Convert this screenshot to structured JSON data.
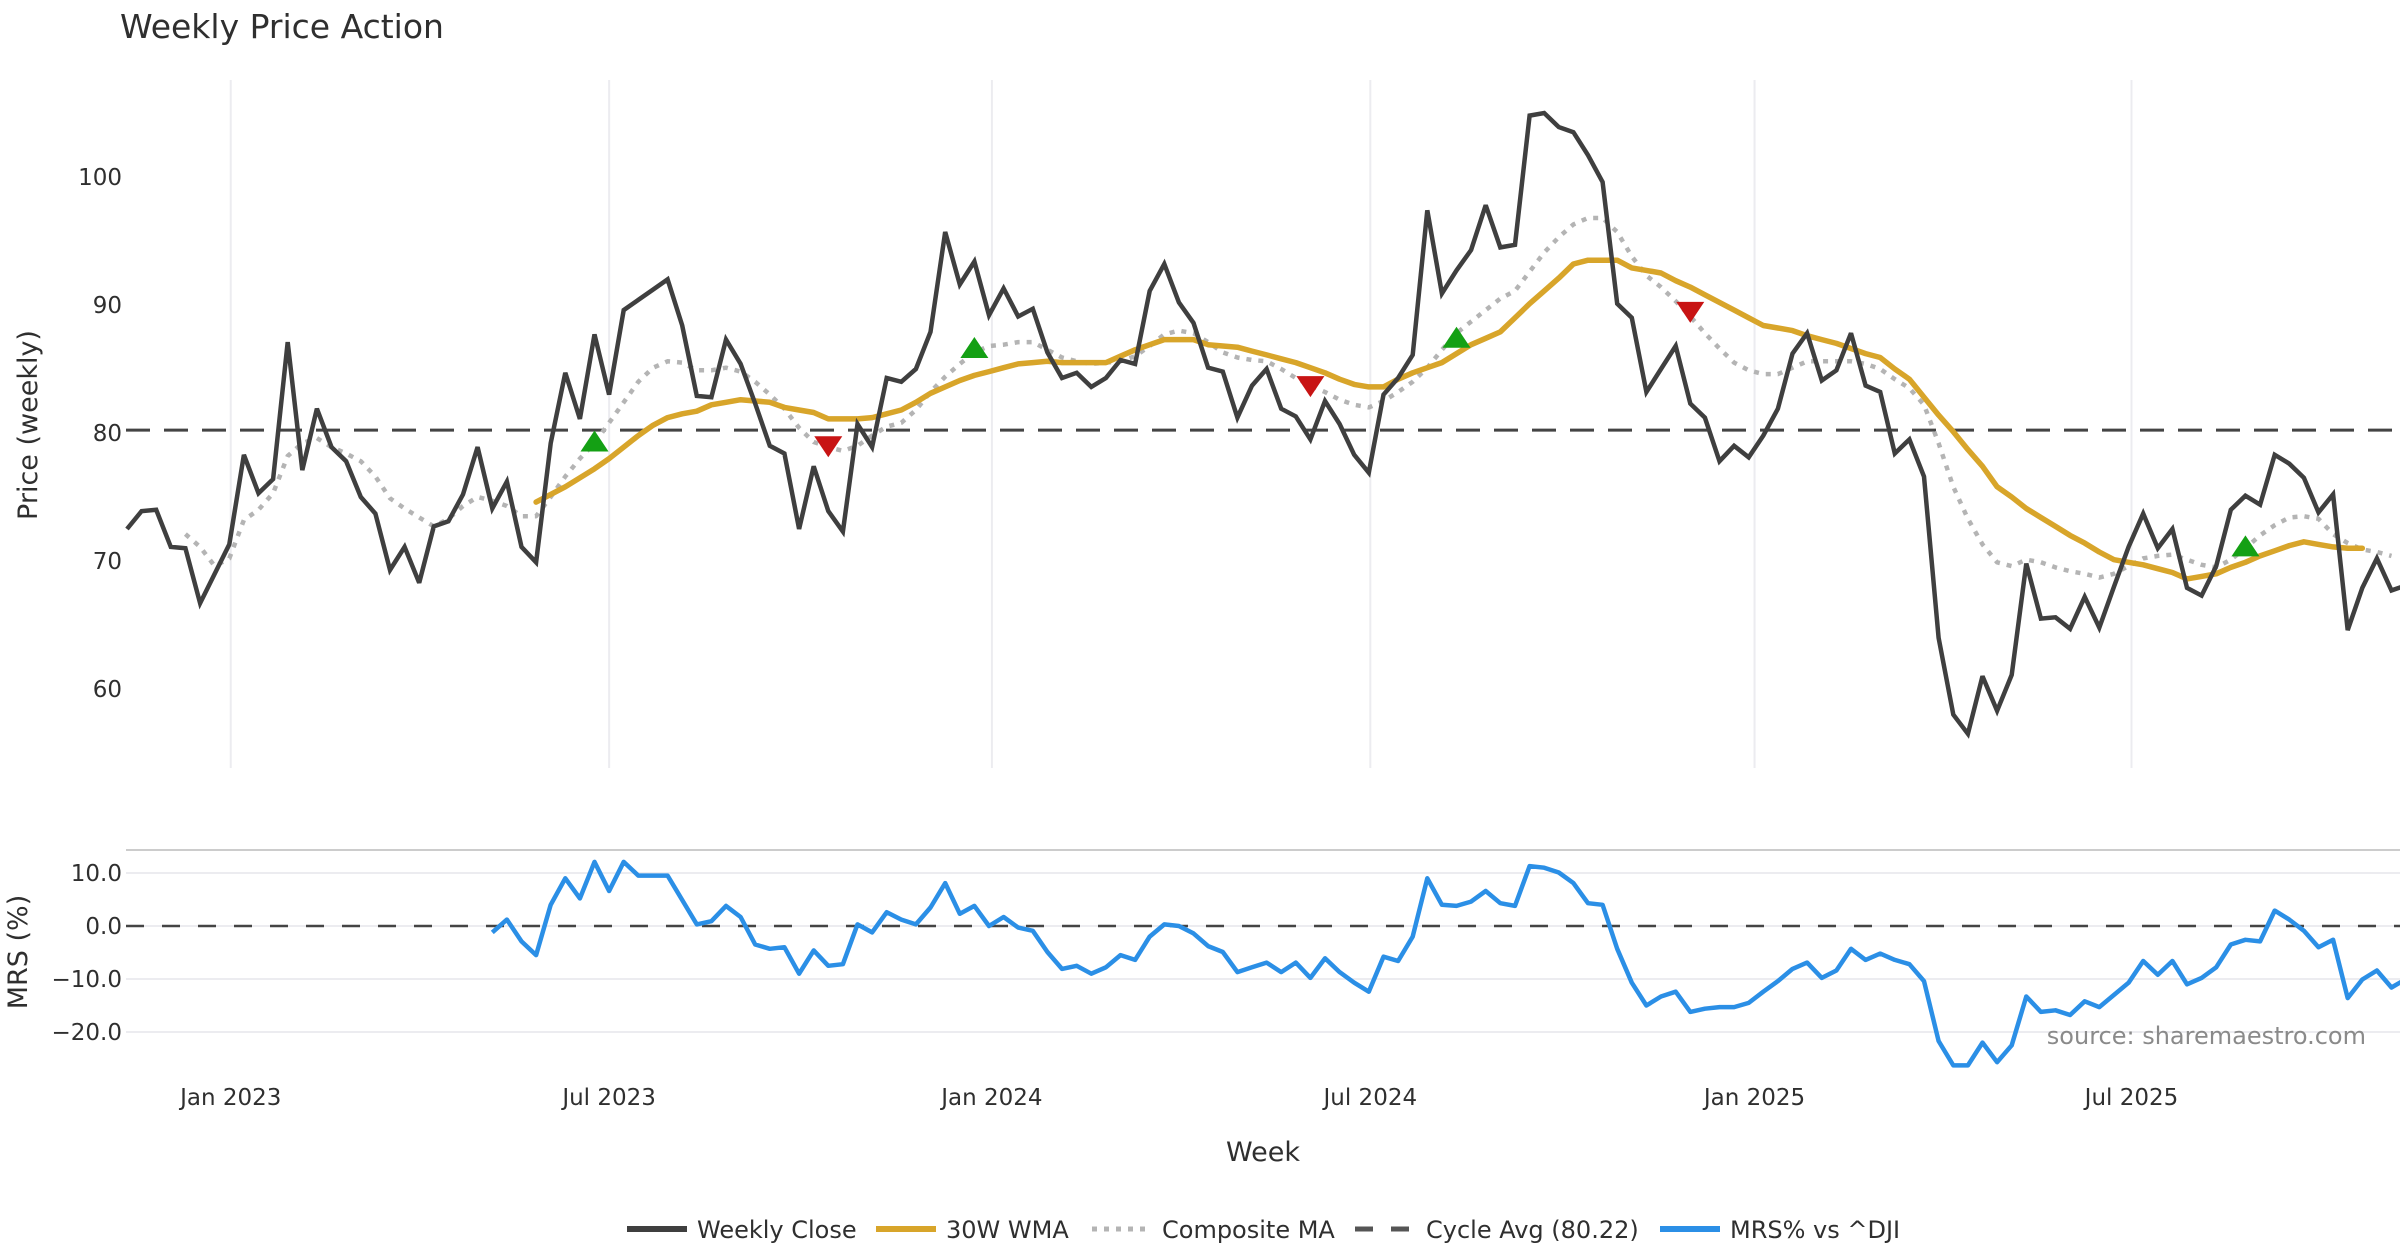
{
  "chart_data": [
    {
      "type": "line",
      "title": "Weekly Price Action",
      "xlabel": "Week",
      "ylabel": "Price (weekly)",
      "ylim": [
        54,
        108
      ],
      "y_ticks": [
        {
          "value": 60,
          "label": "60"
        },
        {
          "value": 70,
          "label": "70"
        },
        {
          "value": 80,
          "label": "80"
        },
        {
          "value": 90,
          "label": "90"
        },
        {
          "value": 100,
          "label": "100"
        }
      ],
      "x_unit": "weeks since first plotted week",
      "x_ticks": [
        {
          "week": 7.1,
          "label": "Jan 2023"
        },
        {
          "week": 33.0,
          "label": "Jul 2023"
        },
        {
          "week": 59.2,
          "label": "Jan 2024"
        },
        {
          "week": 85.1,
          "label": "Jul 2024"
        },
        {
          "week": 111.4,
          "label": "Jan 2025"
        },
        {
          "week": 137.2,
          "label": "Jul 2025"
        }
      ],
      "grid": "vertical",
      "series": [
        {
          "name": "Weekly Close",
          "color": "#3f3f3f",
          "style": "solid",
          "start_week": 0,
          "values": [
            72.5,
            73.9,
            74.0,
            71.1,
            71.0,
            66.7,
            69.0,
            71.3,
            78.3,
            75.3,
            76.4,
            87.1,
            77.1,
            81.9,
            78.9,
            77.8,
            75.0,
            73.7,
            69.3,
            71.1,
            68.3,
            72.7,
            73.1,
            75.2,
            78.9,
            74.1,
            76.2,
            71.1,
            69.9,
            79.2,
            84.7,
            81.1,
            87.7,
            83.0,
            89.6,
            90.4,
            91.2,
            92.0,
            88.4,
            82.9,
            82.8,
            87.3,
            85.4,
            82.3,
            79.0,
            78.4,
            72.5,
            77.4,
            73.9,
            72.3,
            80.7,
            78.9,
            84.3,
            84.0,
            85.0,
            87.9,
            95.7,
            91.6,
            93.4,
            89.2,
            91.3,
            89.1,
            89.7,
            86.3,
            84.3,
            84.7,
            83.6,
            84.3,
            85.7,
            85.4,
            91.1,
            93.2,
            90.2,
            88.6,
            85.1,
            84.8,
            81.2,
            83.7,
            85.0,
            81.9,
            81.3,
            79.5,
            82.5,
            80.7,
            78.3,
            76.9,
            83.0,
            84.3,
            86.1,
            97.4,
            90.9,
            92.7,
            94.3,
            97.8,
            94.5,
            94.7,
            104.8,
            105.0,
            103.9,
            103.5,
            101.7,
            99.6,
            90.1,
            89.0,
            83.2,
            85.0,
            86.8,
            82.3,
            81.2,
            77.8,
            79.0,
            78.1,
            79.8,
            81.9,
            86.2,
            87.8,
            84.1,
            84.9,
            87.8,
            83.7,
            83.2,
            78.4,
            79.5,
            76.6,
            64.0,
            58.0,
            56.5,
            61.0,
            58.3,
            61.1,
            69.8,
            65.5,
            65.6,
            64.7,
            67.2,
            64.8,
            68.0,
            71.1,
            73.7,
            71.0,
            72.5,
            67.9,
            67.3,
            69.6,
            74.0,
            75.1,
            74.4,
            78.3,
            77.6,
            76.5,
            73.8,
            75.2,
            64.6,
            67.9,
            70.2,
            67.7,
            68.1
          ]
        },
        {
          "name": "30W WMA",
          "color": "#d8a52a",
          "style": "solid",
          "start_week": 28,
          "values": [
            74.6,
            75.2,
            75.8,
            76.5,
            77.2,
            78.0,
            78.9,
            79.8,
            80.6,
            81.2,
            81.5,
            81.7,
            82.2,
            82.4,
            82.6,
            82.5,
            82.4,
            82.0,
            81.8,
            81.6,
            81.1,
            81.1,
            81.1,
            81.2,
            81.5,
            81.8,
            82.4,
            83.1,
            83.6,
            84.1,
            84.5,
            84.8,
            85.1,
            85.4,
            85.5,
            85.6,
            85.5,
            85.5,
            85.5,
            85.5,
            86.0,
            86.5,
            86.9,
            87.3,
            87.3,
            87.3,
            86.9,
            86.8,
            86.7,
            86.4,
            86.1,
            85.8,
            85.5,
            85.1,
            84.7,
            84.2,
            83.8,
            83.6,
            83.6,
            84.2,
            84.7,
            85.1,
            85.5,
            86.2,
            86.9,
            87.4,
            87.9,
            89.0,
            90.1,
            91.1,
            92.1,
            93.2,
            93.5,
            93.5,
            93.5,
            92.9,
            92.7,
            92.5,
            91.9,
            91.4,
            90.8,
            90.2,
            89.6,
            89.0,
            88.4,
            88.2,
            88.0,
            87.6,
            87.3,
            87.0,
            86.6,
            86.2,
            85.9,
            85.0,
            84.2,
            82.8,
            81.4,
            80.1,
            78.7,
            77.4,
            75.8,
            75.0,
            74.1,
            73.4,
            72.7,
            72.0,
            71.4,
            70.7,
            70.1,
            69.9,
            69.7,
            69.4,
            69.1,
            68.6,
            68.8,
            69.0,
            69.5,
            69.9,
            70.4,
            70.8,
            71.2,
            71.5,
            71.3,
            71.1,
            71.0,
            71.0
          ]
        },
        {
          "name": "Composite MA",
          "color": "#b4b4b4",
          "style": "dotted",
          "start_week": 4,
          "values": [
            72.1,
            71.1,
            69.6,
            70.2,
            73.2,
            74.0,
            75.3,
            78.2,
            79.2,
            79.6,
            78.9,
            78.4,
            77.8,
            76.6,
            74.9,
            74.1,
            73.4,
            72.7,
            73.3,
            74.3,
            75.0,
            74.7,
            74.3,
            73.5,
            73.5,
            75.0,
            76.6,
            78.0,
            79.2,
            80.8,
            82.4,
            84.0,
            85.1,
            85.6,
            85.5,
            84.9,
            84.9,
            85.1,
            84.8,
            84.0,
            83.0,
            81.9,
            80.4,
            79.3,
            78.9,
            78.6,
            79.0,
            79.8,
            80.5,
            80.8,
            81.8,
            83.2,
            84.4,
            85.4,
            86.3,
            86.8,
            86.9,
            87.1,
            87.1,
            86.5,
            85.9,
            85.6,
            85.4,
            85.5,
            85.6,
            86.0,
            86.8,
            87.7,
            88.0,
            87.8,
            87.1,
            86.3,
            85.9,
            85.7,
            85.6,
            85.0,
            84.3,
            83.7,
            83.2,
            82.6,
            82.2,
            82.0,
            82.5,
            83.2,
            84.0,
            85.1,
            86.5,
            87.8,
            88.7,
            89.6,
            90.5,
            91.1,
            92.6,
            94.1,
            95.3,
            96.3,
            96.8,
            96.8,
            95.7,
            93.8,
            92.3,
            91.4,
            90.3,
            89.1,
            87.8,
            86.6,
            85.5,
            84.9,
            84.6,
            84.6,
            85.1,
            85.6,
            85.6,
            85.6,
            85.6,
            85.4,
            85.0,
            84.2,
            83.5,
            82.2,
            79.2,
            75.8,
            73.3,
            71.3,
            69.9,
            69.6,
            70.1,
            69.9,
            69.5,
            69.2,
            69.0,
            68.7,
            69.0,
            69.6,
            70.2,
            70.4,
            70.5,
            70.1,
            69.7,
            69.5,
            70.1,
            71.0,
            72.0,
            72.8,
            73.4,
            73.5,
            73.3,
            72.1,
            71.4,
            70.9,
            70.7,
            70.4
          ]
        },
        {
          "name": "Cycle Avg (80.22)",
          "color": "#444444",
          "style": "dashed",
          "constant": 80.22
        }
      ],
      "markers": [
        {
          "type": "buy",
          "shape": "triangle-up",
          "color": "#14a014",
          "week": 32,
          "value": 79.3
        },
        {
          "type": "sell",
          "shape": "triangle-down",
          "color": "#c81414",
          "week": 48,
          "value": 79.0
        },
        {
          "type": "buy",
          "shape": "triangle-up",
          "color": "#14a014",
          "week": 58,
          "value": 86.6
        },
        {
          "type": "sell",
          "shape": "triangle-down",
          "color": "#c81414",
          "week": 81,
          "value": 83.7
        },
        {
          "type": "buy",
          "shape": "triangle-up",
          "color": "#14a014",
          "week": 91,
          "value": 87.4
        },
        {
          "type": "sell",
          "shape": "triangle-down",
          "color": "#c81414",
          "week": 107,
          "value": 89.5
        },
        {
          "type": "buy",
          "shape": "triangle-up",
          "color": "#14a014",
          "week": 145,
          "value": 71.1
        }
      ]
    },
    {
      "type": "line",
      "title": "",
      "xlabel": "Week",
      "ylabel": "MRS (%)",
      "ylim": [
        -28.5,
        14.5
      ],
      "y_ticks": [
        {
          "value": 10,
          "label": "10.0"
        },
        {
          "value": 0,
          "label": "0.0"
        },
        {
          "value": -10,
          "label": "−10.0"
        },
        {
          "value": -20,
          "label": "−20.0"
        }
      ],
      "grid": "horizontal",
      "zero_line": {
        "value": 0,
        "style": "dashed",
        "color": "#444444"
      },
      "series": [
        {
          "name": "MRS% vs ^DJI",
          "color": "#2b8fe6",
          "style": "solid",
          "start_week": 25,
          "values": [
            -1.2,
            1.2,
            -2.9,
            -5.5,
            4.0,
            9.0,
            5.2,
            12.1,
            6.6,
            12.1,
            9.5,
            9.5,
            9.5,
            4.9,
            0.3,
            0.9,
            3.8,
            1.7,
            -3.5,
            -4.3,
            -4.0,
            -9.0,
            -4.6,
            -7.5,
            -7.2,
            0.3,
            -1.2,
            2.6,
            1.2,
            0.3,
            3.5,
            8.1,
            2.3,
            3.8,
            0.0,
            1.7,
            -0.3,
            -0.9,
            -4.9,
            -8.1,
            -7.5,
            -9.0,
            -7.8,
            -5.5,
            -6.4,
            -2.0,
            0.3,
            0.0,
            -1.4,
            -3.8,
            -4.9,
            -8.7,
            -7.8,
            -6.9,
            -8.7,
            -6.9,
            -9.8,
            -6.1,
            -8.7,
            -10.7,
            -12.4,
            -5.8,
            -6.6,
            -2.0,
            9.0,
            4.0,
            3.8,
            4.6,
            6.6,
            4.3,
            3.8,
            11.3,
            11.0,
            10.1,
            8.1,
            4.3,
            4.0,
            -4.3,
            -10.7,
            -15.0,
            -13.3,
            -12.4,
            -16.2,
            -15.6,
            -15.3,
            -15.3,
            -14.5,
            -12.4,
            -10.4,
            -8.1,
            -6.9,
            -9.8,
            -8.4,
            -4.3,
            -6.4,
            -5.2,
            -6.4,
            -7.2,
            -10.4,
            -21.7,
            -26.3,
            -26.3,
            -22.0,
            -25.7,
            -22.5,
            -13.3,
            -16.2,
            -15.9,
            -16.8,
            -14.2,
            -15.3,
            -13.0,
            -10.7,
            -6.6,
            -9.2,
            -6.6,
            -11.0,
            -9.8,
            -7.8,
            -3.5,
            -2.6,
            -2.9,
            2.9,
            1.2,
            -0.9,
            -4.0,
            -2.6,
            -13.6,
            -10.1,
            -8.4,
            -11.6,
            -10.0
          ]
        }
      ],
      "annotation": "source: sharemaestro.com"
    }
  ],
  "legend": {
    "placement": "bottom-center",
    "items": [
      {
        "label": "Weekly Close",
        "color": "#3f3f3f",
        "style": "solid"
      },
      {
        "label": "30W WMA",
        "color": "#d8a52a",
        "style": "solid"
      },
      {
        "label": "Composite MA",
        "color": "#b4b4b4",
        "style": "dotted"
      },
      {
        "label": "Cycle Avg (80.22)",
        "color": "#555555",
        "style": "dashed"
      },
      {
        "label": "MRS% vs ^DJI",
        "color": "#2b8fe6",
        "style": "solid"
      }
    ]
  }
}
